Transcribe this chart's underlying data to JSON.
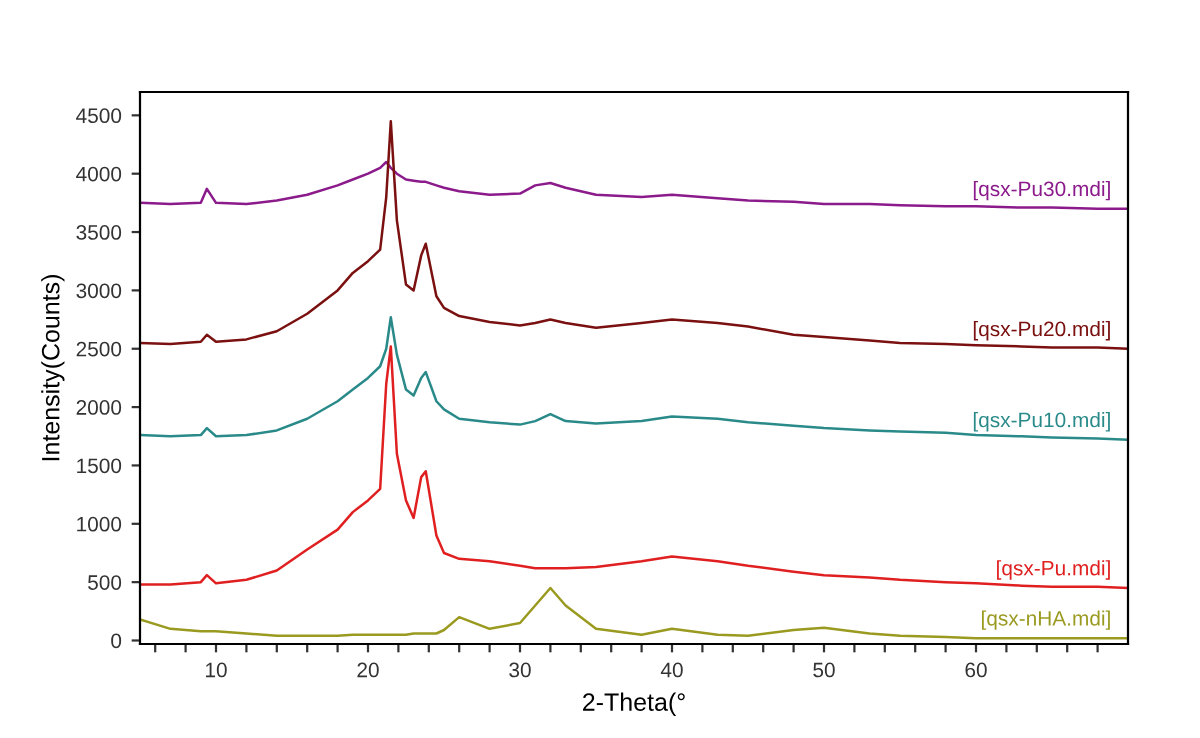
{
  "chart_data": {
    "type": "line",
    "xlabel": "2-Theta(°",
    "ylabel": "Intensity(Counts)",
    "x": [
      5,
      7,
      9,
      9.4,
      10,
      12,
      14,
      16,
      18,
      19,
      20,
      20.8,
      21.2,
      21.5,
      21.9,
      22.5,
      23,
      23.5,
      23.8,
      24.5,
      25,
      26,
      28,
      30,
      31,
      32,
      33,
      35,
      38,
      40,
      43,
      45,
      48,
      50,
      53,
      55,
      58,
      60,
      63,
      65,
      68,
      70
    ],
    "series": [
      {
        "name": "[qsx-Pu30.mdi]",
        "color": "#8b1a8b",
        "values": [
          3750,
          3740,
          3750,
          3870,
          3750,
          3740,
          3770,
          3820,
          3900,
          3950,
          4000,
          4050,
          4100,
          4050,
          4000,
          3950,
          3940,
          3930,
          3930,
          3900,
          3880,
          3850,
          3820,
          3830,
          3900,
          3920,
          3880,
          3820,
          3800,
          3820,
          3790,
          3770,
          3760,
          3740,
          3740,
          3730,
          3720,
          3720,
          3710,
          3710,
          3700,
          3700
        ]
      },
      {
        "name": "[qsx-Pu20.mdi]",
        "color": "#7a1010",
        "values": [
          2550,
          2540,
          2560,
          2620,
          2560,
          2580,
          2650,
          2800,
          3000,
          3150,
          3250,
          3350,
          3800,
          4450,
          3600,
          3050,
          3000,
          3300,
          3400,
          2950,
          2850,
          2780,
          2730,
          2700,
          2720,
          2750,
          2720,
          2680,
          2720,
          2750,
          2720,
          2690,
          2620,
          2600,
          2570,
          2550,
          2540,
          2530,
          2520,
          2510,
          2510,
          2500
        ]
      },
      {
        "name": "[qsx-Pu10.mdi]",
        "color": "#2a8a8a",
        "values": [
          1760,
          1750,
          1760,
          1820,
          1750,
          1760,
          1800,
          1900,
          2050,
          2150,
          2250,
          2350,
          2500,
          2770,
          2450,
          2150,
          2100,
          2250,
          2300,
          2050,
          1980,
          1900,
          1870,
          1850,
          1880,
          1940,
          1880,
          1860,
          1880,
          1920,
          1900,
          1870,
          1840,
          1820,
          1800,
          1790,
          1780,
          1760,
          1750,
          1740,
          1730,
          1720
        ]
      },
      {
        "name": "[qsx-Pu.mdi]",
        "color": "#e02020",
        "values": [
          480,
          480,
          500,
          560,
          490,
          520,
          600,
          780,
          950,
          1100,
          1200,
          1300,
          2200,
          2520,
          1600,
          1200,
          1050,
          1400,
          1450,
          900,
          750,
          700,
          680,
          640,
          620,
          620,
          620,
          630,
          680,
          720,
          680,
          640,
          590,
          560,
          540,
          520,
          500,
          490,
          470,
          460,
          460,
          450
        ]
      },
      {
        "name": "[qsx-nHA.mdi]",
        "color": "#9a9a20",
        "values": [
          180,
          100,
          80,
          80,
          80,
          60,
          40,
          40,
          40,
          50,
          50,
          50,
          50,
          50,
          50,
          50,
          60,
          60,
          60,
          60,
          90,
          200,
          100,
          150,
          300,
          450,
          300,
          100,
          50,
          100,
          50,
          40,
          90,
          110,
          60,
          40,
          30,
          20,
          20,
          20,
          20,
          20
        ]
      }
    ],
    "xlim": [
      5,
      70
    ],
    "ylim": [
      -30,
      4700
    ],
    "xticks": [
      {
        "value": 6,
        "label": null
      },
      {
        "value": 8,
        "label": null
      },
      10,
      {
        "value": 12,
        "label": null
      },
      {
        "value": 14,
        "label": null
      },
      {
        "value": 16,
        "label": null
      },
      {
        "value": 18,
        "label": null
      },
      20,
      {
        "value": 22,
        "label": null
      },
      {
        "value": 24,
        "label": null
      },
      {
        "value": 26,
        "label": null
      },
      {
        "value": 28,
        "label": null
      },
      30,
      {
        "value": 32,
        "label": null
      },
      {
        "value": 34,
        "label": null
      },
      {
        "value": 36,
        "label": null
      },
      {
        "value": 38,
        "label": null
      },
      40,
      {
        "value": 42,
        "label": null
      },
      {
        "value": 44,
        "label": null
      },
      {
        "value": 46,
        "label": null
      },
      {
        "value": 48,
        "label": null
      },
      50,
      {
        "value": 52,
        "label": null
      },
      {
        "value": 54,
        "label": null
      },
      {
        "value": 56,
        "label": null
      },
      {
        "value": 58,
        "label": null
      },
      60,
      {
        "value": 62,
        "label": null
      },
      {
        "value": 64,
        "label": null
      },
      {
        "value": 66,
        "label": null
      },
      {
        "value": 68,
        "label": null
      }
    ],
    "yticks": [
      0,
      500,
      1000,
      1500,
      2000,
      2500,
      3000,
      3500,
      4000,
      4500
    ],
    "grid": false,
    "legend": false,
    "marker": "none",
    "line_style": "solid"
  }
}
